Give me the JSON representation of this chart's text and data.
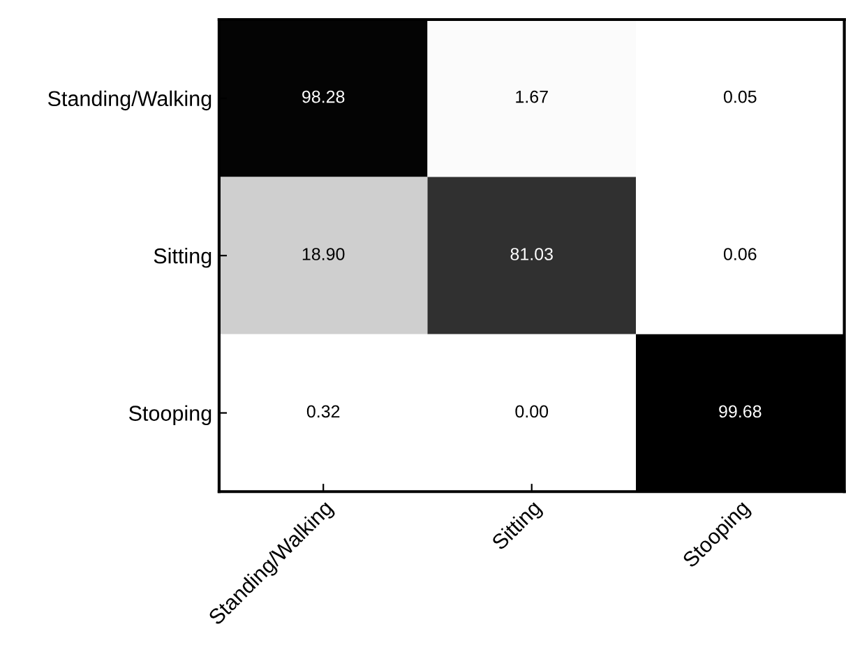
{
  "chart_data": {
    "type": "heatmap",
    "categories": [
      "Standing/Walking",
      "Sitting",
      "Stooping"
    ],
    "y_categories": [
      "Standing/Walking",
      "Sitting",
      "Stooping"
    ],
    "cells": [
      [
        98.28,
        1.67,
        0.05
      ],
      [
        18.9,
        81.03,
        0.06
      ],
      [
        0.32,
        0.0,
        99.68
      ]
    ],
    "cell_labels": [
      [
        "98.28",
        "1.67",
        "0.05"
      ],
      [
        "18.90",
        "81.03",
        "0.06"
      ],
      [
        "0.32",
        "0.00",
        "99.68"
      ]
    ]
  }
}
